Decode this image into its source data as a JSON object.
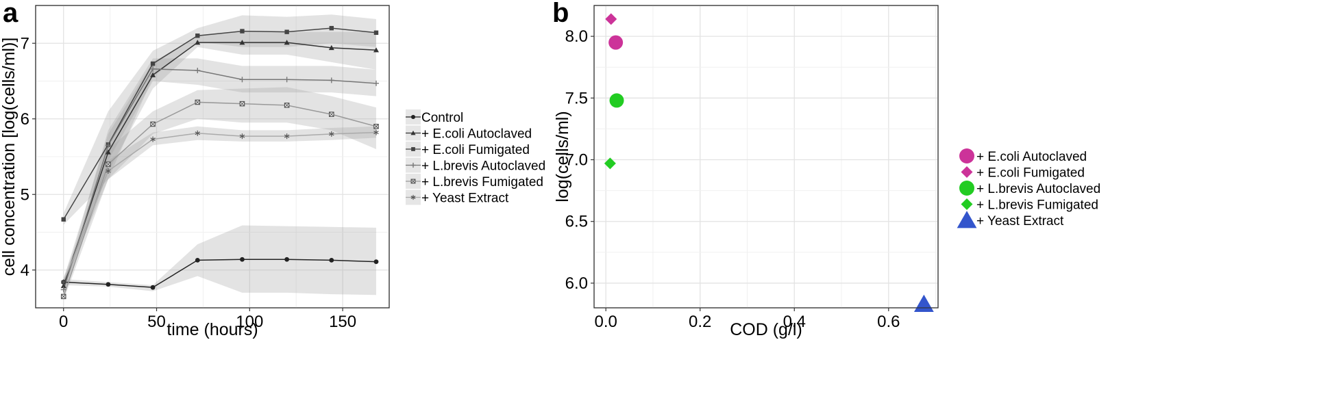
{
  "chart_data": [
    {
      "panel": "a",
      "type": "line",
      "xlabel": "time (hours)",
      "ylabel": "cell concentration [log(cells/ml)]",
      "xlim": [
        -15,
        175
      ],
      "ylim": [
        3.5,
        7.5
      ],
      "xticks": [
        0,
        50,
        100,
        150
      ],
      "yticks": [
        4,
        5,
        6,
        7
      ],
      "grid": true,
      "legend_position": "right",
      "series": [
        {
          "name": "Control",
          "marker": "circle",
          "color": "#222222",
          "x": [
            0,
            24,
            48,
            72,
            96,
            120,
            144,
            168
          ],
          "y": [
            3.84,
            3.81,
            3.77,
            4.13,
            4.14,
            4.14,
            4.13,
            4.11
          ],
          "ribbon_low": [
            3.8,
            3.78,
            3.72,
            3.92,
            3.7,
            3.7,
            3.68,
            3.67
          ],
          "ribbon_high": [
            3.88,
            3.84,
            3.8,
            4.34,
            4.59,
            4.58,
            4.57,
            4.56
          ]
        },
        {
          "name": "+ E.coli Autoclaved",
          "marker": "triangle",
          "color": "#333333",
          "x": [
            0,
            24,
            48,
            72,
            96,
            120,
            144,
            168
          ],
          "y": [
            3.79,
            5.56,
            6.58,
            7.01,
            7.01,
            7.01,
            6.94,
            6.91
          ],
          "ribbon_low": [
            3.7,
            5.3,
            6.4,
            6.95,
            6.85,
            6.85,
            6.75,
            6.65
          ],
          "ribbon_high": [
            3.88,
            5.8,
            6.75,
            7.1,
            7.15,
            7.15,
            7.15,
            7.15
          ]
        },
        {
          "name": "+ E.coli Fumigated",
          "marker": "square",
          "color": "#444444",
          "x": [
            0,
            24,
            48,
            72,
            96,
            120,
            144,
            168
          ],
          "y": [
            4.67,
            5.66,
            6.73,
            7.1,
            7.16,
            7.15,
            7.2,
            7.14
          ],
          "ribbon_low": [
            4.6,
            5.2,
            6.55,
            7.02,
            6.95,
            6.95,
            7.0,
            6.95
          ],
          "ribbon_high": [
            4.75,
            6.1,
            6.9,
            7.2,
            7.37,
            7.35,
            7.38,
            7.32
          ]
        },
        {
          "name": "+ L.brevis Autoclaved",
          "marker": "plus",
          "color": "#777777",
          "x": [
            0,
            24,
            48,
            72,
            96,
            120,
            144,
            168
          ],
          "y": [
            3.74,
            5.65,
            6.66,
            6.64,
            6.52,
            6.52,
            6.51,
            6.47
          ],
          "ribbon_low": [
            3.68,
            5.45,
            6.5,
            6.45,
            6.35,
            6.35,
            6.35,
            6.3
          ],
          "ribbon_high": [
            3.8,
            5.85,
            6.8,
            6.8,
            6.7,
            6.7,
            6.7,
            6.65
          ]
        },
        {
          "name": "+ L.brevis Fumigated",
          "marker": "boxx",
          "color": "#999999",
          "x": [
            0,
            24,
            48,
            72,
            96,
            120,
            144,
            168
          ],
          "y": [
            3.65,
            5.4,
            5.93,
            6.22,
            6.2,
            6.18,
            6.06,
            5.9
          ],
          "ribbon_low": [
            3.6,
            5.2,
            5.8,
            6.0,
            5.95,
            5.95,
            5.85,
            5.6
          ],
          "ribbon_high": [
            3.72,
            5.6,
            6.1,
            6.38,
            6.4,
            6.42,
            6.3,
            6.15
          ]
        },
        {
          "name": "+ Yeast Extract",
          "marker": "asterisk",
          "color": "#aaaaaa",
          "x": [
            0,
            24,
            48,
            72,
            96,
            120,
            144,
            168
          ],
          "y": [
            3.84,
            5.31,
            5.73,
            5.81,
            5.77,
            5.77,
            5.8,
            5.82
          ],
          "ribbon_low": [
            3.78,
            5.2,
            5.65,
            5.72,
            5.7,
            5.7,
            5.72,
            5.75
          ],
          "ribbon_high": [
            3.9,
            5.45,
            5.82,
            5.9,
            5.85,
            5.85,
            5.88,
            5.9
          ]
        }
      ]
    },
    {
      "panel": "b",
      "type": "scatter",
      "xlabel": "COD (g/l)",
      "ylabel": "log(cells/ml)",
      "xlim": [
        -0.025,
        0.705
      ],
      "ylim": [
        5.8,
        8.25
      ],
      "xticks": [
        0.0,
        0.2,
        0.4,
        0.6
      ],
      "xtick_labels": [
        "0.0",
        "0.2",
        "0.4",
        "0.6"
      ],
      "yticks": [
        6.0,
        6.5,
        7.0,
        7.5,
        8.0
      ],
      "ytick_labels": [
        "6.0",
        "6.5",
        "7.0",
        "7.5",
        "8.0"
      ],
      "grid": true,
      "legend_position": "right",
      "points": [
        {
          "name": "+ E.coli Autoclaved",
          "shape": "circle",
          "color": "#cc3399",
          "x": 0.021,
          "y": 7.95
        },
        {
          "name": "+ E.coli Fumigated",
          "shape": "diamond",
          "color": "#cc3399",
          "x": 0.011,
          "y": 8.14
        },
        {
          "name": "+ L.brevis Autoclaved",
          "shape": "circle",
          "color": "#22cc22",
          "x": 0.023,
          "y": 7.48
        },
        {
          "name": "+ L.brevis Fumigated",
          "shape": "diamond",
          "color": "#22cc22",
          "x": 0.009,
          "y": 6.97
        },
        {
          "name": "+ Yeast Extract",
          "shape": "triangle",
          "color": "#3355cc",
          "x": 0.675,
          "y": 5.83
        }
      ]
    }
  ]
}
